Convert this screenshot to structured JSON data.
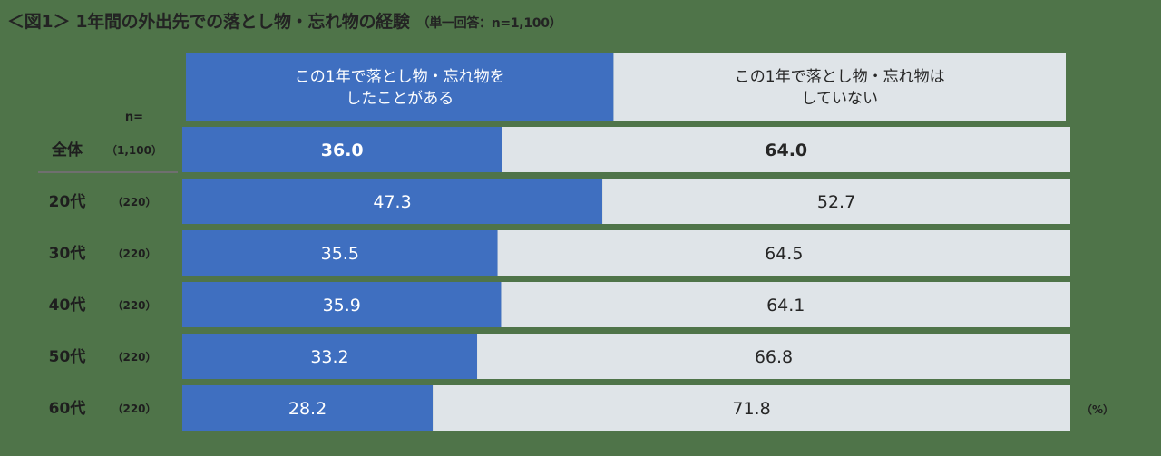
{
  "title": "＜図1＞ 1年間の外出先での落とし物・忘れ物の経験",
  "subtitle": "（単一回答：n=1,100）",
  "n_header": "n=",
  "unit": "（%）",
  "colors": {
    "background": "#4f7449",
    "series_yes": "#3f6fc0",
    "series_no": "#dfe4e8",
    "value_text_on_blue": "#ffffff",
    "value_text_on_grey": "#262626",
    "row_label_text": "#1e1e1e"
  },
  "chart_data": {
    "type": "bar",
    "orientation": "horizontal",
    "stacked": true,
    "categories": [
      "全体",
      "20代",
      "30代",
      "40代",
      "50代",
      "60代"
    ],
    "n_labels": [
      "（1,100）",
      "（220）",
      "（220）",
      "（220）",
      "（220）",
      "（220）"
    ],
    "series": [
      {
        "name": "この1年で落とし物・忘れ物をしたことがある",
        "legend_lines": [
          "この1年で落とし物・忘れ物を",
          "したことがある"
        ],
        "values": [
          36.0,
          47.3,
          35.5,
          35.9,
          33.2,
          28.2
        ],
        "labels": [
          "36.0",
          "47.3",
          "35.5",
          "35.9",
          "33.2",
          "28.2"
        ]
      },
      {
        "name": "この1年で落とし物・忘れ物はしていない",
        "legend_lines": [
          "この1年で落とし物・忘れ物は",
          "していない"
        ],
        "values": [
          64.0,
          52.7,
          64.5,
          64.1,
          66.8,
          71.8
        ],
        "labels": [
          "64.0",
          "52.7",
          "64.5",
          "64.1",
          "66.8",
          "71.8"
        ]
      }
    ],
    "xlim": [
      0,
      100
    ],
    "legend_position": "top",
    "grid": false,
    "emphasized_category": "全体"
  }
}
